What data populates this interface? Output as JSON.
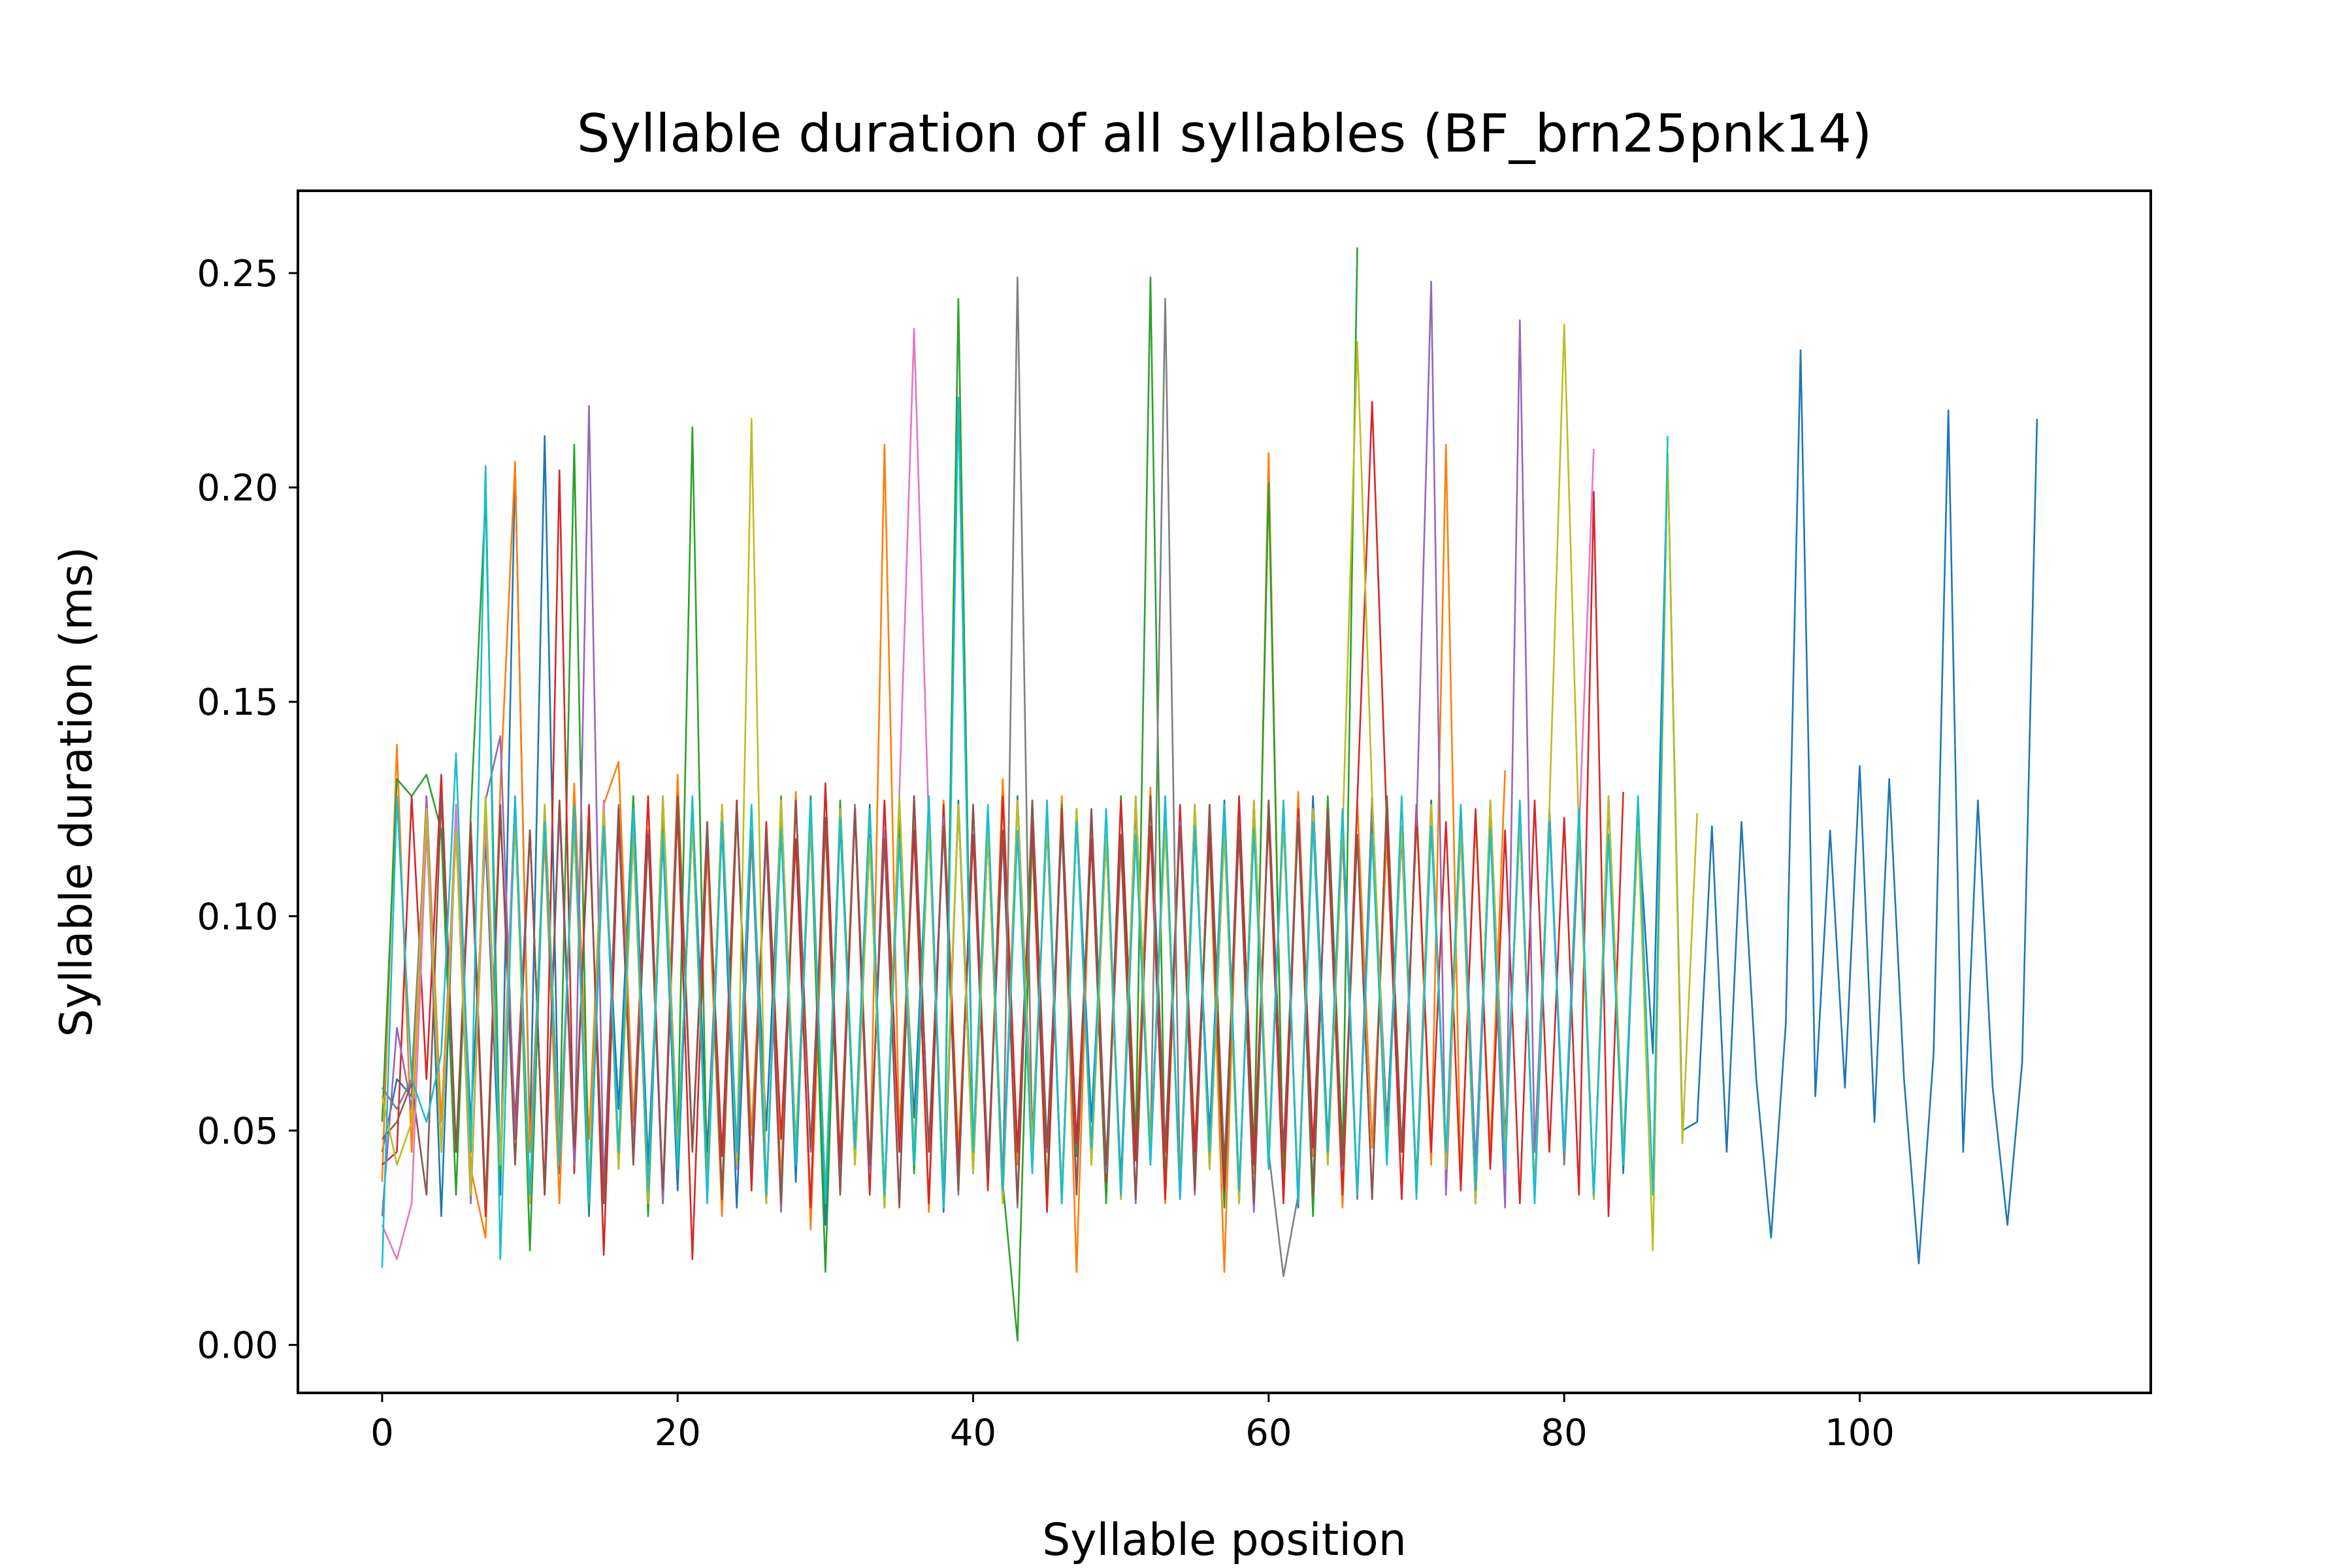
{
  "chart_data": {
    "type": "line",
    "title": "Syllable duration of all syllables (BF_brn25pnk14)",
    "xlabel": "Syllable position",
    "ylabel": "Syllable duration (ms)",
    "xlim": [
      -5.7,
      119.7
    ],
    "ylim": [
      -0.0112,
      0.2692
    ],
    "xticks": [
      0,
      20,
      40,
      60,
      80,
      100
    ],
    "xtick_labels": [
      "0",
      "20",
      "40",
      "60",
      "80",
      "100"
    ],
    "yticks": [
      0.0,
      0.05,
      0.1,
      0.15,
      0.2,
      0.25
    ],
    "ytick_labels": [
      "0.00",
      "0.05",
      "0.10",
      "0.15",
      "0.20",
      "0.25"
    ],
    "grid": false,
    "legend": "none",
    "palette": [
      "#1f77b4",
      "#ff7f0e",
      "#2ca02c",
      "#d62728",
      "#9467bd",
      "#8c564b",
      "#e377c2",
      "#7f7f7f",
      "#bcbd22",
      "#17becf"
    ],
    "series": [
      {
        "color": "#1f77b4",
        "x_start": 0,
        "values": [
          0.045,
          0.062,
          0.058,
          0.125,
          0.03,
          0.123,
          0.052,
          0.118,
          0.035,
          0.205,
          0.048,
          0.212,
          0.04,
          0.125,
          0.03,
          0.12,
          0.055,
          0.128,
          0.042,
          0.118,
          0.036,
          0.127,
          0.045,
          0.121,
          0.032,
          0.119,
          0.05,
          0.125,
          0.038,
          0.128,
          0.028,
          0.122,
          0.047,
          0.126,
          0.035,
          0.12,
          0.053,
          0.124,
          0.031,
          0.127,
          0.044,
          0.119,
          0.036,
          0.128,
          0.048,
          0.121,
          0.033,
          0.125,
          0.052,
          0.118,
          0.038,
          0.126,
          0.042,
          0.123,
          0.034,
          0.12,
          0.049,
          0.127,
          0.036,
          0.122,
          0.045,
          0.125,
          0.032,
          0.128,
          0.047,
          0.12,
          0.035,
          0.124,
          0.051,
          0.119,
          0.038,
          0.127,
          0.043,
          0.121,
          0.033,
          0.126,
          0.048,
          0.122,
          0.036,
          0.125,
          0.045,
          0.12,
          0.034,
          0.127,
          0.04,
          0.123,
          0.068,
          0.208,
          0.05,
          0.052,
          0.121,
          0.045,
          0.122,
          0.062,
          0.025,
          0.075,
          0.232,
          0.058,
          0.12,
          0.06,
          0.135,
          0.052,
          0.132,
          0.062,
          0.019,
          0.068,
          0.218,
          0.045,
          0.127,
          0.06,
          0.028,
          0.066,
          0.216
        ]
      },
      {
        "color": "#ff7f0e",
        "x_start": 0,
        "values": [
          0.038,
          0.14,
          0.045,
          0.128,
          0.052,
          0.122,
          0.041,
          0.025,
          0.13,
          0.206,
          0.045,
          0.118,
          0.033,
          0.131,
          0.048,
          0.126,
          0.136,
          0.052,
          0.12,
          0.035,
          0.133,
          0.046,
          0.115,
          0.03,
          0.124,
          0.049,
          0.118,
          0.038,
          0.129,
          0.027,
          0.121,
          0.044,
          0.126,
          0.036,
          0.21,
          0.048,
          0.123,
          0.031,
          0.127,
          0.045,
          0.119,
          0.037,
          0.132,
          0.042,
          0.117,
          0.034,
          0.128,
          0.017,
          0.124,
          0.038,
          0.116,
          0.045,
          0.13,
          0.033,
          0.122,
          0.047,
          0.118,
          0.017,
          0.126,
          0.04,
          0.208,
          0.036,
          0.129,
          0.044,
          0.121,
          0.032,
          0.127,
          0.046,
          0.118,
          0.035,
          0.125,
          0.042,
          0.21,
          0.038,
          0.123,
          0.045,
          0.134
        ]
      },
      {
        "color": "#2ca02c",
        "x_start": 0,
        "values": [
          0.052,
          0.132,
          0.128,
          0.133,
          0.12,
          0.035,
          0.124,
          0.198,
          0.04,
          0.128,
          0.022,
          0.125,
          0.046,
          0.21,
          0.032,
          0.122,
          0.044,
          0.128,
          0.03,
          0.124,
          0.048,
          0.214,
          0.036,
          0.126,
          0.045,
          0.119,
          0.033,
          0.128,
          0.042,
          0.122,
          0.017,
          0.127,
          0.046,
          0.119,
          0.035,
          0.125,
          0.04,
          0.121,
          0.032,
          0.244,
          0.045,
          0.123,
          0.038,
          0.001,
          0.12,
          0.036,
          0.126,
          0.044,
          0.118,
          0.033,
          0.128,
          0.047,
          0.249,
          0.036,
          0.124,
          0.04,
          0.119,
          0.032,
          0.127,
          0.045,
          0.201,
          0.038,
          0.125,
          0.03,
          0.128,
          0.044,
          0.256
        ]
      },
      {
        "color": "#d62728",
        "x_start": 0,
        "values": [
          0.042,
          0.045,
          0.128,
          0.062,
          0.133,
          0.045,
          0.118,
          0.03,
          0.124,
          0.052,
          0.12,
          0.035,
          0.204,
          0.04,
          0.126,
          0.021,
          0.122,
          0.046,
          0.128,
          0.033,
          0.125,
          0.02,
          0.119,
          0.044,
          0.127,
          0.036,
          0.122,
          0.048,
          0.118,
          0.032,
          0.131,
          0.042,
          0.124,
          0.035,
          0.127,
          0.045,
          0.12,
          0.033,
          0.126,
          0.041,
          0.119,
          0.036,
          0.128,
          0.045,
          0.122,
          0.031,
          0.125,
          0.047,
          0.118,
          0.038,
          0.127,
          0.043,
          0.121,
          0.034,
          0.126,
          0.045,
          0.12,
          0.036,
          0.128,
          0.042,
          0.123,
          0.033,
          0.125,
          0.046,
          0.119,
          0.035,
          0.127,
          0.22,
          0.121,
          0.034,
          0.126,
          0.045,
          0.122,
          0.036,
          0.125,
          0.041,
          0.12,
          0.033,
          0.127,
          0.045,
          0.123,
          0.035,
          0.199,
          0.03,
          0.129
        ]
      },
      {
        "color": "#9467bd",
        "x_start": 0,
        "values": [
          0.03,
          0.074,
          0.055,
          0.128,
          0.045,
          0.122,
          0.033,
          0.127,
          0.142,
          0.048,
          0.12,
          0.035,
          0.125,
          0.042,
          0.219,
          0.036,
          0.126,
          0.045,
          0.119,
          0.033,
          0.128,
          0.046,
          0.121,
          0.035,
          0.125,
          0.042,
          0.118,
          0.031,
          0.127,
          0.045,
          0.122,
          0.036,
          0.126,
          0.04,
          0.12,
          0.033,
          0.128,
          0.046,
          0.123,
          0.035,
          0.126,
          0.042,
          0.119,
          0.032,
          0.127,
          0.045,
          0.121,
          0.036,
          0.125,
          0.04,
          0.118,
          0.033,
          0.128,
          0.046,
          0.122,
          0.035,
          0.126,
          0.042,
          0.12,
          0.031,
          0.127,
          0.045,
          0.123,
          0.036,
          0.125,
          0.041,
          0.119,
          0.034,
          0.128,
          0.045,
          0.121,
          0.248,
          0.035,
          0.126,
          0.042,
          0.122,
          0.032,
          0.239,
          0.045,
          0.121
        ]
      },
      {
        "color": "#8c564b",
        "x_start": 0,
        "values": [
          0.048,
          0.052,
          0.061,
          0.035,
          0.128,
          0.045,
          0.122,
          0.033,
          0.126,
          0.042,
          0.12,
          0.035,
          0.127,
          0.046,
          0.121,
          0.033,
          0.125,
          0.042,
          0.119,
          0.036,
          0.128,
          0.045,
          0.122,
          0.034,
          0.126,
          0.041,
          0.12,
          0.033,
          0.127,
          0.046,
          0.123,
          0.035,
          0.125,
          0.042,
          0.118,
          0.032,
          0.128,
          0.045,
          0.121,
          0.036,
          0.126,
          0.04,
          0.12,
          0.033,
          0.127,
          0.046,
          0.122,
          0.035,
          0.125,
          0.042,
          0.119,
          0.034,
          0.128,
          0.045,
          0.121,
          0.036,
          0.126,
          0.041,
          0.12,
          0.033,
          0.127,
          0.045,
          0.122,
          0.035,
          0.125,
          0.042,
          0.119,
          0.034,
          0.128,
          0.045,
          0.121
        ]
      },
      {
        "color": "#e377c2",
        "x_start": 0,
        "values": [
          0.028,
          0.02,
          0.033,
          0.12,
          0.045,
          0.126,
          0.035,
          0.122,
          0.042,
          0.128,
          0.033,
          0.125,
          0.046,
          0.121,
          0.035,
          0.127,
          0.042,
          0.119,
          0.033,
          0.128,
          0.045,
          0.122,
          0.036,
          0.126,
          0.041,
          0.12,
          0.033,
          0.127,
          0.046,
          0.123,
          0.035,
          0.125,
          0.042,
          0.118,
          0.032,
          0.128,
          0.237,
          0.121,
          0.036,
          0.126,
          0.04,
          0.12,
          0.033,
          0.127,
          0.046,
          0.122,
          0.035,
          0.125,
          0.042,
          0.119,
          0.034,
          0.128,
          0.045,
          0.121,
          0.036,
          0.126,
          0.041,
          0.12,
          0.033,
          0.127,
          0.045,
          0.122,
          0.035,
          0.125,
          0.042,
          0.119,
          0.034,
          0.128,
          0.045,
          0.121,
          0.036,
          0.126,
          0.041,
          0.12,
          0.033,
          0.127,
          0.045,
          0.122,
          0.035,
          0.125,
          0.042,
          0.119,
          0.209
        ]
      },
      {
        "color": "#7f7f7f",
        "x_start": 0,
        "values": [
          0.06,
          0.055,
          0.062,
          0.125,
          0.045,
          0.12,
          0.035,
          0.128,
          0.042,
          0.122,
          0.033,
          0.126,
          0.045,
          0.121,
          0.036,
          0.125,
          0.041,
          0.119,
          0.033,
          0.128,
          0.045,
          0.122,
          0.035,
          0.126,
          0.042,
          0.12,
          0.033,
          0.127,
          0.046,
          0.123,
          0.035,
          0.125,
          0.042,
          0.118,
          0.032,
          0.128,
          0.045,
          0.121,
          0.036,
          0.126,
          0.04,
          0.12,
          0.033,
          0.249,
          0.046,
          0.122,
          0.035,
          0.125,
          0.042,
          0.119,
          0.034,
          0.128,
          0.045,
          0.244,
          0.036,
          0.126,
          0.041,
          0.12,
          0.033,
          0.127,
          0.045,
          0.016,
          0.035,
          0.125,
          0.042,
          0.119,
          0.034,
          0.128,
          0.045,
          0.121,
          0.036,
          0.126,
          0.041,
          0.12,
          0.033,
          0.127,
          0.045,
          0.122,
          0.035,
          0.125,
          0.042,
          0.119,
          0.034,
          0.128,
          0.045,
          0.121
        ]
      },
      {
        "color": "#bcbd22",
        "x_start": 0,
        "values": [
          0.058,
          0.042,
          0.052,
          0.125,
          0.045,
          0.12,
          0.035,
          0.128,
          0.042,
          0.122,
          0.033,
          0.126,
          0.045,
          0.121,
          0.036,
          0.125,
          0.041,
          0.119,
          0.033,
          0.128,
          0.045,
          0.122,
          0.035,
          0.126,
          0.042,
          0.216,
          0.033,
          0.127,
          0.046,
          0.123,
          0.035,
          0.125,
          0.042,
          0.118,
          0.032,
          0.128,
          0.045,
          0.121,
          0.036,
          0.126,
          0.04,
          0.12,
          0.033,
          0.127,
          0.046,
          0.122,
          0.035,
          0.125,
          0.042,
          0.119,
          0.034,
          0.128,
          0.045,
          0.121,
          0.036,
          0.126,
          0.041,
          0.12,
          0.033,
          0.127,
          0.045,
          0.122,
          0.035,
          0.125,
          0.042,
          0.119,
          0.234,
          0.128,
          0.045,
          0.121,
          0.036,
          0.126,
          0.041,
          0.12,
          0.033,
          0.127,
          0.045,
          0.122,
          0.035,
          0.125,
          0.238,
          0.119,
          0.034,
          0.128,
          0.045,
          0.121,
          0.022,
          0.208,
          0.047,
          0.124
        ]
      },
      {
        "color": "#17becf",
        "x_start": 0,
        "values": [
          0.018,
          0.128,
          0.062,
          0.052,
          0.068,
          0.138,
          0.045,
          0.205,
          0.02,
          0.128,
          0.035,
          0.122,
          0.042,
          0.126,
          0.033,
          0.121,
          0.045,
          0.125,
          0.036,
          0.119,
          0.041,
          0.128,
          0.033,
          0.122,
          0.045,
          0.126,
          0.035,
          0.12,
          0.042,
          0.127,
          0.033,
          0.123,
          0.046,
          0.125,
          0.035,
          0.118,
          0.042,
          0.128,
          0.032,
          0.221,
          0.045,
          0.126,
          0.036,
          0.12,
          0.04,
          0.127,
          0.033,
          0.122,
          0.046,
          0.125,
          0.035,
          0.119,
          0.042,
          0.128,
          0.034,
          0.121,
          0.045,
          0.126,
          0.036,
          0.12,
          0.041,
          0.127,
          0.033,
          0.122,
          0.045,
          0.125,
          0.035,
          0.119,
          0.042,
          0.128,
          0.034,
          0.121,
          0.045,
          0.126,
          0.036,
          0.12,
          0.041,
          0.127,
          0.033,
          0.122,
          0.045,
          0.125,
          0.035,
          0.119,
          0.042,
          0.128,
          0.035,
          0.212
        ]
      }
    ]
  }
}
